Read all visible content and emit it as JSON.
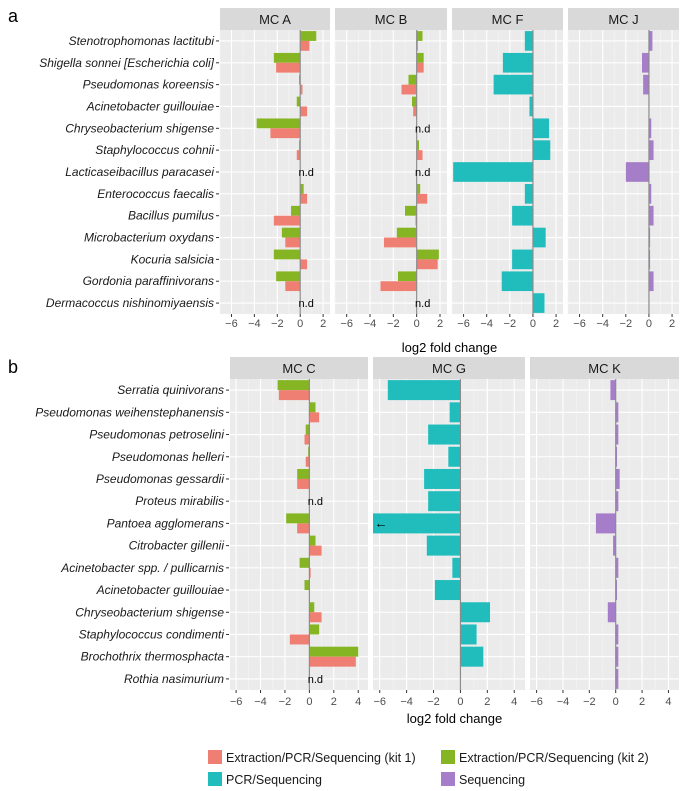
{
  "colors": {
    "kit1": "#F07F73",
    "kit2": "#86B524",
    "pcr": "#21BDBD",
    "seq": "#A67DC9",
    "panel_bg": "#EBEBEB",
    "strip_bg": "#D9D9D9",
    "grid_major": "#FFFFFF",
    "zero_line": "#8C8C8C"
  },
  "chart_data": [
    {
      "type": "bar",
      "panel_label": "a",
      "orientation": "horizontal",
      "xlabel": "log2 fold change",
      "xlim": [
        -7,
        2.6
      ],
      "x_ticks": [
        -6,
        -4,
        -2,
        0,
        2
      ],
      "x_tick_labels": [
        "−6",
        "−4",
        "−2",
        "0",
        "2"
      ],
      "grid": true,
      "categories": [
        "Stenotrophomonas lactitubi",
        "Shigella sonnei [Escherichia coli]",
        "Pseudomonas koreensis",
        "Acinetobacter guillouiae",
        "Chryseobacterium shigense",
        "Staphylococcus cohnii",
        "Lacticaseibacillus paracasei",
        "Enterococcus faecalis",
        "Bacillus pumilus",
        "Microbacterium oxydans",
        "Kocuria salsicia",
        "Gordonia paraffinivorans",
        "Dermacoccus nishinomiyaensis"
      ],
      "facets": [
        {
          "title": "MC A",
          "series": [
            {
              "name": "Extraction/PCR/Sequencing (kit 2)",
              "color_key": "kit2",
              "values": [
                1.4,
                -2.3,
                -0.1,
                -0.3,
                -3.8,
                -0.1,
                null,
                0.3,
                -0.8,
                -1.6,
                -2.3,
                -2.1,
                null
              ]
            },
            {
              "name": "Extraction/PCR/Sequencing (kit 1)",
              "color_key": "kit1",
              "values": [
                0.8,
                -2.1,
                0.2,
                0.6,
                -2.6,
                -0.3,
                null,
                0.6,
                -2.3,
                -1.3,
                0.6,
                -1.3,
                null
              ]
            }
          ],
          "annotations": [
            {
              "text": "n.d",
              "category": "Lacticaseibacillus paracasei",
              "x": 0
            },
            {
              "text": "n.d",
              "category": "Dermacoccus nishinomiyaensis",
              "x": 0
            }
          ]
        },
        {
          "title": "MC B",
          "series": [
            {
              "name": "Extraction/PCR/Sequencing (kit 2)",
              "color_key": "kit2",
              "values": [
                0.5,
                0.6,
                -0.7,
                -0.4,
                null,
                0.2,
                null,
                0.3,
                -1.0,
                -1.7,
                1.9,
                -1.6,
                null
              ]
            },
            {
              "name": "Extraction/PCR/Sequencing (kit 1)",
              "color_key": "kit1",
              "values": [
                0.1,
                0.6,
                -1.3,
                -0.3,
                null,
                0.5,
                null,
                0.9,
                -0.1,
                -2.8,
                1.8,
                -3.1,
                null
              ]
            }
          ],
          "annotations": [
            {
              "text": "n.d",
              "category": "Chryseobacterium shigense",
              "x": 0
            },
            {
              "text": "n.d",
              "category": "Lacticaseibacillus paracasei",
              "x": 0
            },
            {
              "text": "n.d",
              "category": "Dermacoccus nishinomiyaensis",
              "x": 0
            }
          ]
        },
        {
          "title": "MC F",
          "series": [
            {
              "name": "PCR/Sequencing",
              "color_key": "pcr",
              "values": [
                -0.7,
                -2.6,
                -3.4,
                -0.3,
                1.4,
                1.5,
                -6.9,
                -0.7,
                -1.8,
                1.1,
                -1.8,
                -2.7,
                1.0
              ]
            }
          ],
          "annotations": []
        },
        {
          "title": "MC J",
          "series": [
            {
              "name": "Sequencing",
              "color_key": "seq",
              "values": [
                0.3,
                -0.6,
                -0.5,
                0.0,
                0.2,
                0.4,
                -2.0,
                0.2,
                0.4,
                0.1,
                0.1,
                0.4,
                0.0
              ]
            }
          ],
          "annotations": []
        }
      ]
    },
    {
      "type": "bar",
      "panel_label": "b",
      "orientation": "horizontal",
      "xlabel": "log2 fold change",
      "xlim": [
        -6.5,
        4.8
      ],
      "x_ticks": [
        -6,
        -4,
        -2,
        0,
        2,
        4
      ],
      "x_tick_labels": [
        "−6",
        "−4",
        "−2",
        "0",
        "2",
        "4"
      ],
      "grid": true,
      "categories": [
        "Serratia quinivorans",
        "Pseudomonas weihenstephanensis",
        "Pseudomonas petroselini",
        "Pseudomonas helleri",
        "Pseudomonas gessardii",
        "Proteus mirabilis",
        "Pantoea agglomerans",
        "Citrobacter gillenii",
        "Acinetobacter spp. / pullicarnis",
        "Acinetobacter guillouiae",
        "Chryseobacterium shigense",
        "Staphylococcus condimenti",
        "Brochothrix thermosphacta",
        "Rothia nasimurium"
      ],
      "facets": [
        {
          "title": "MC C",
          "series": [
            {
              "name": "Extraction/PCR/Sequencing (kit 2)",
              "color_key": "kit2",
              "values": [
                -2.6,
                0.5,
                -0.3,
                -0.1,
                -1.0,
                null,
                -1.9,
                0.5,
                -0.8,
                -0.4,
                0.4,
                0.8,
                4.0,
                null
              ]
            },
            {
              "name": "Extraction/PCR/Sequencing (kit 1)",
              "color_key": "kit1",
              "values": [
                -2.5,
                0.8,
                -0.4,
                -0.3,
                -1.0,
                null,
                -1.0,
                1.0,
                0.1,
                0.0,
                1.0,
                -1.6,
                3.8,
                null
              ]
            }
          ],
          "annotations": [
            {
              "text": "n.d",
              "category": "Proteus mirabilis",
              "x": 0
            },
            {
              "text": "n.d",
              "category": "Rothia nasimurium",
              "x": 0
            }
          ]
        },
        {
          "title": "MC G",
          "series": [
            {
              "name": "PCR/Sequencing",
              "color_key": "pcr",
              "values": [
                -5.4,
                -0.8,
                -2.4,
                -0.9,
                -2.7,
                -2.4,
                -6.5,
                -2.5,
                -0.6,
                -1.9,
                2.2,
                1.2,
                1.7,
                0.0
              ]
            }
          ],
          "annotations": [
            {
              "text": "←",
              "category": "Pantoea agglomerans",
              "x": -5.9
            }
          ]
        },
        {
          "title": "MC K",
          "series": [
            {
              "name": "Sequencing",
              "color_key": "seq",
              "values": [
                -0.4,
                0.2,
                0.2,
                0.1,
                0.3,
                0.2,
                -1.5,
                -0.2,
                0.2,
                0.1,
                -0.6,
                0.2,
                0.2,
                0.2
              ]
            }
          ],
          "annotations": []
        }
      ]
    }
  ],
  "legend": {
    "items": [
      {
        "label": "Extraction/PCR/Sequencing (kit 1)",
        "color_key": "kit1"
      },
      {
        "label": "Extraction/PCR/Sequencing (kit 2)",
        "color_key": "kit2"
      },
      {
        "label": "PCR/Sequencing",
        "color_key": "pcr"
      },
      {
        "label": "Sequencing",
        "color_key": "seq"
      }
    ]
  }
}
